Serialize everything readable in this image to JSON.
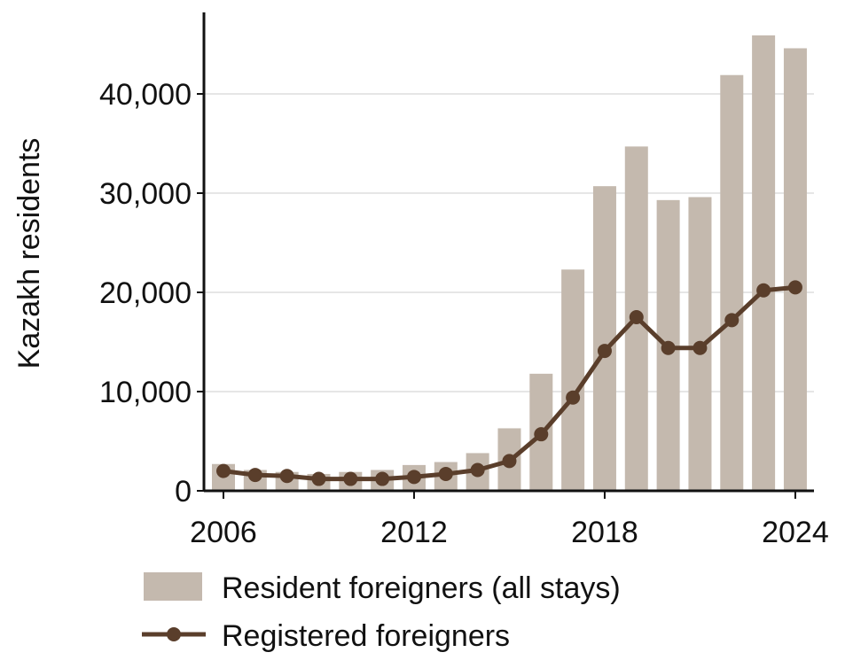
{
  "chart_data": {
    "type": "bar",
    "title": "",
    "xlabel": "",
    "ylabel": "Kazakh residents",
    "x": [
      2006,
      2007,
      2008,
      2009,
      2010,
      2011,
      2012,
      2013,
      2014,
      2015,
      2016,
      2017,
      2018,
      2019,
      2020,
      2021,
      2022,
      2023,
      2024
    ],
    "xticks": [
      2006,
      2012,
      2018,
      2024
    ],
    "xtick_labels": [
      "2006",
      "2012",
      "2018",
      "2024"
    ],
    "ylim": [
      0,
      48000
    ],
    "yticks": [
      0,
      10000,
      20000,
      30000,
      40000
    ],
    "ytick_labels": [
      "0",
      "10,000",
      "20,000",
      "30,000",
      "40,000"
    ],
    "grid": "horizontal",
    "legend_position": "bottom",
    "series": [
      {
        "name": "Resident foreigners (all stays)",
        "kind": "bar",
        "color": "#c4b9ae",
        "values": [
          2700,
          2100,
          1900,
          1700,
          1900,
          2100,
          2600,
          2900,
          3800,
          6300,
          11800,
          22300,
          30700,
          34700,
          29300,
          29600,
          41900,
          45900,
          44600
        ]
      },
      {
        "name": "Registered foreigners",
        "kind": "line",
        "color": "#5a3e2b",
        "values": [
          2000,
          1600,
          1500,
          1200,
          1200,
          1200,
          1400,
          1700,
          2100,
          3000,
          5700,
          9400,
          14100,
          17500,
          14400,
          14400,
          17200,
          20200,
          20500
        ]
      }
    ]
  }
}
